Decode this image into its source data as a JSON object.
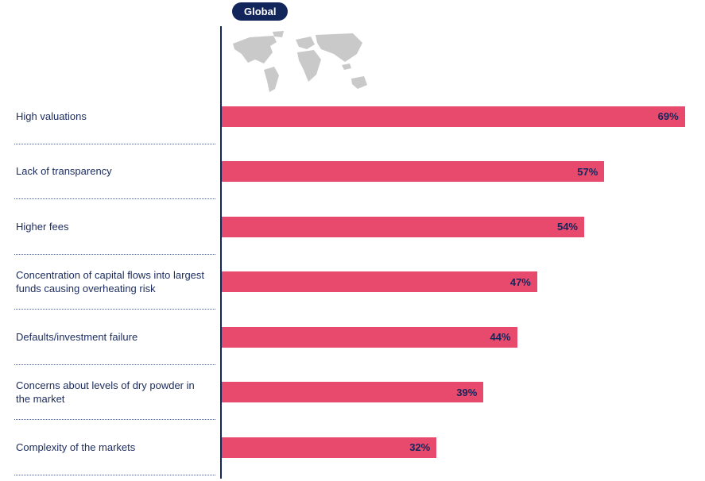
{
  "header": {
    "badge_label": "Global"
  },
  "colors": {
    "navy": "#12265c",
    "bar": "#e84a6d",
    "map_gray": "#c9c9c9",
    "separator": "#55628c"
  },
  "chart_data": {
    "type": "bar",
    "orientation": "horizontal",
    "title": "Global",
    "categories": [
      "High valuations",
      "Lack of transparency",
      "Higher fees",
      "Concentration of capital flows into largest funds causing overheating risk",
      "Defaults/investment failure",
      "Concerns about levels of dry powder in the market",
      "Complexity of the markets"
    ],
    "values": [
      69,
      57,
      54,
      47,
      44,
      39,
      32
    ],
    "value_labels": [
      "69%",
      "57%",
      "54%",
      "47%",
      "44%",
      "39%",
      "32%"
    ],
    "unit": "%",
    "xlim": [
      0,
      72
    ],
    "grid": false,
    "legend": "none",
    "annotations": "world map graphic at top of bar area"
  }
}
